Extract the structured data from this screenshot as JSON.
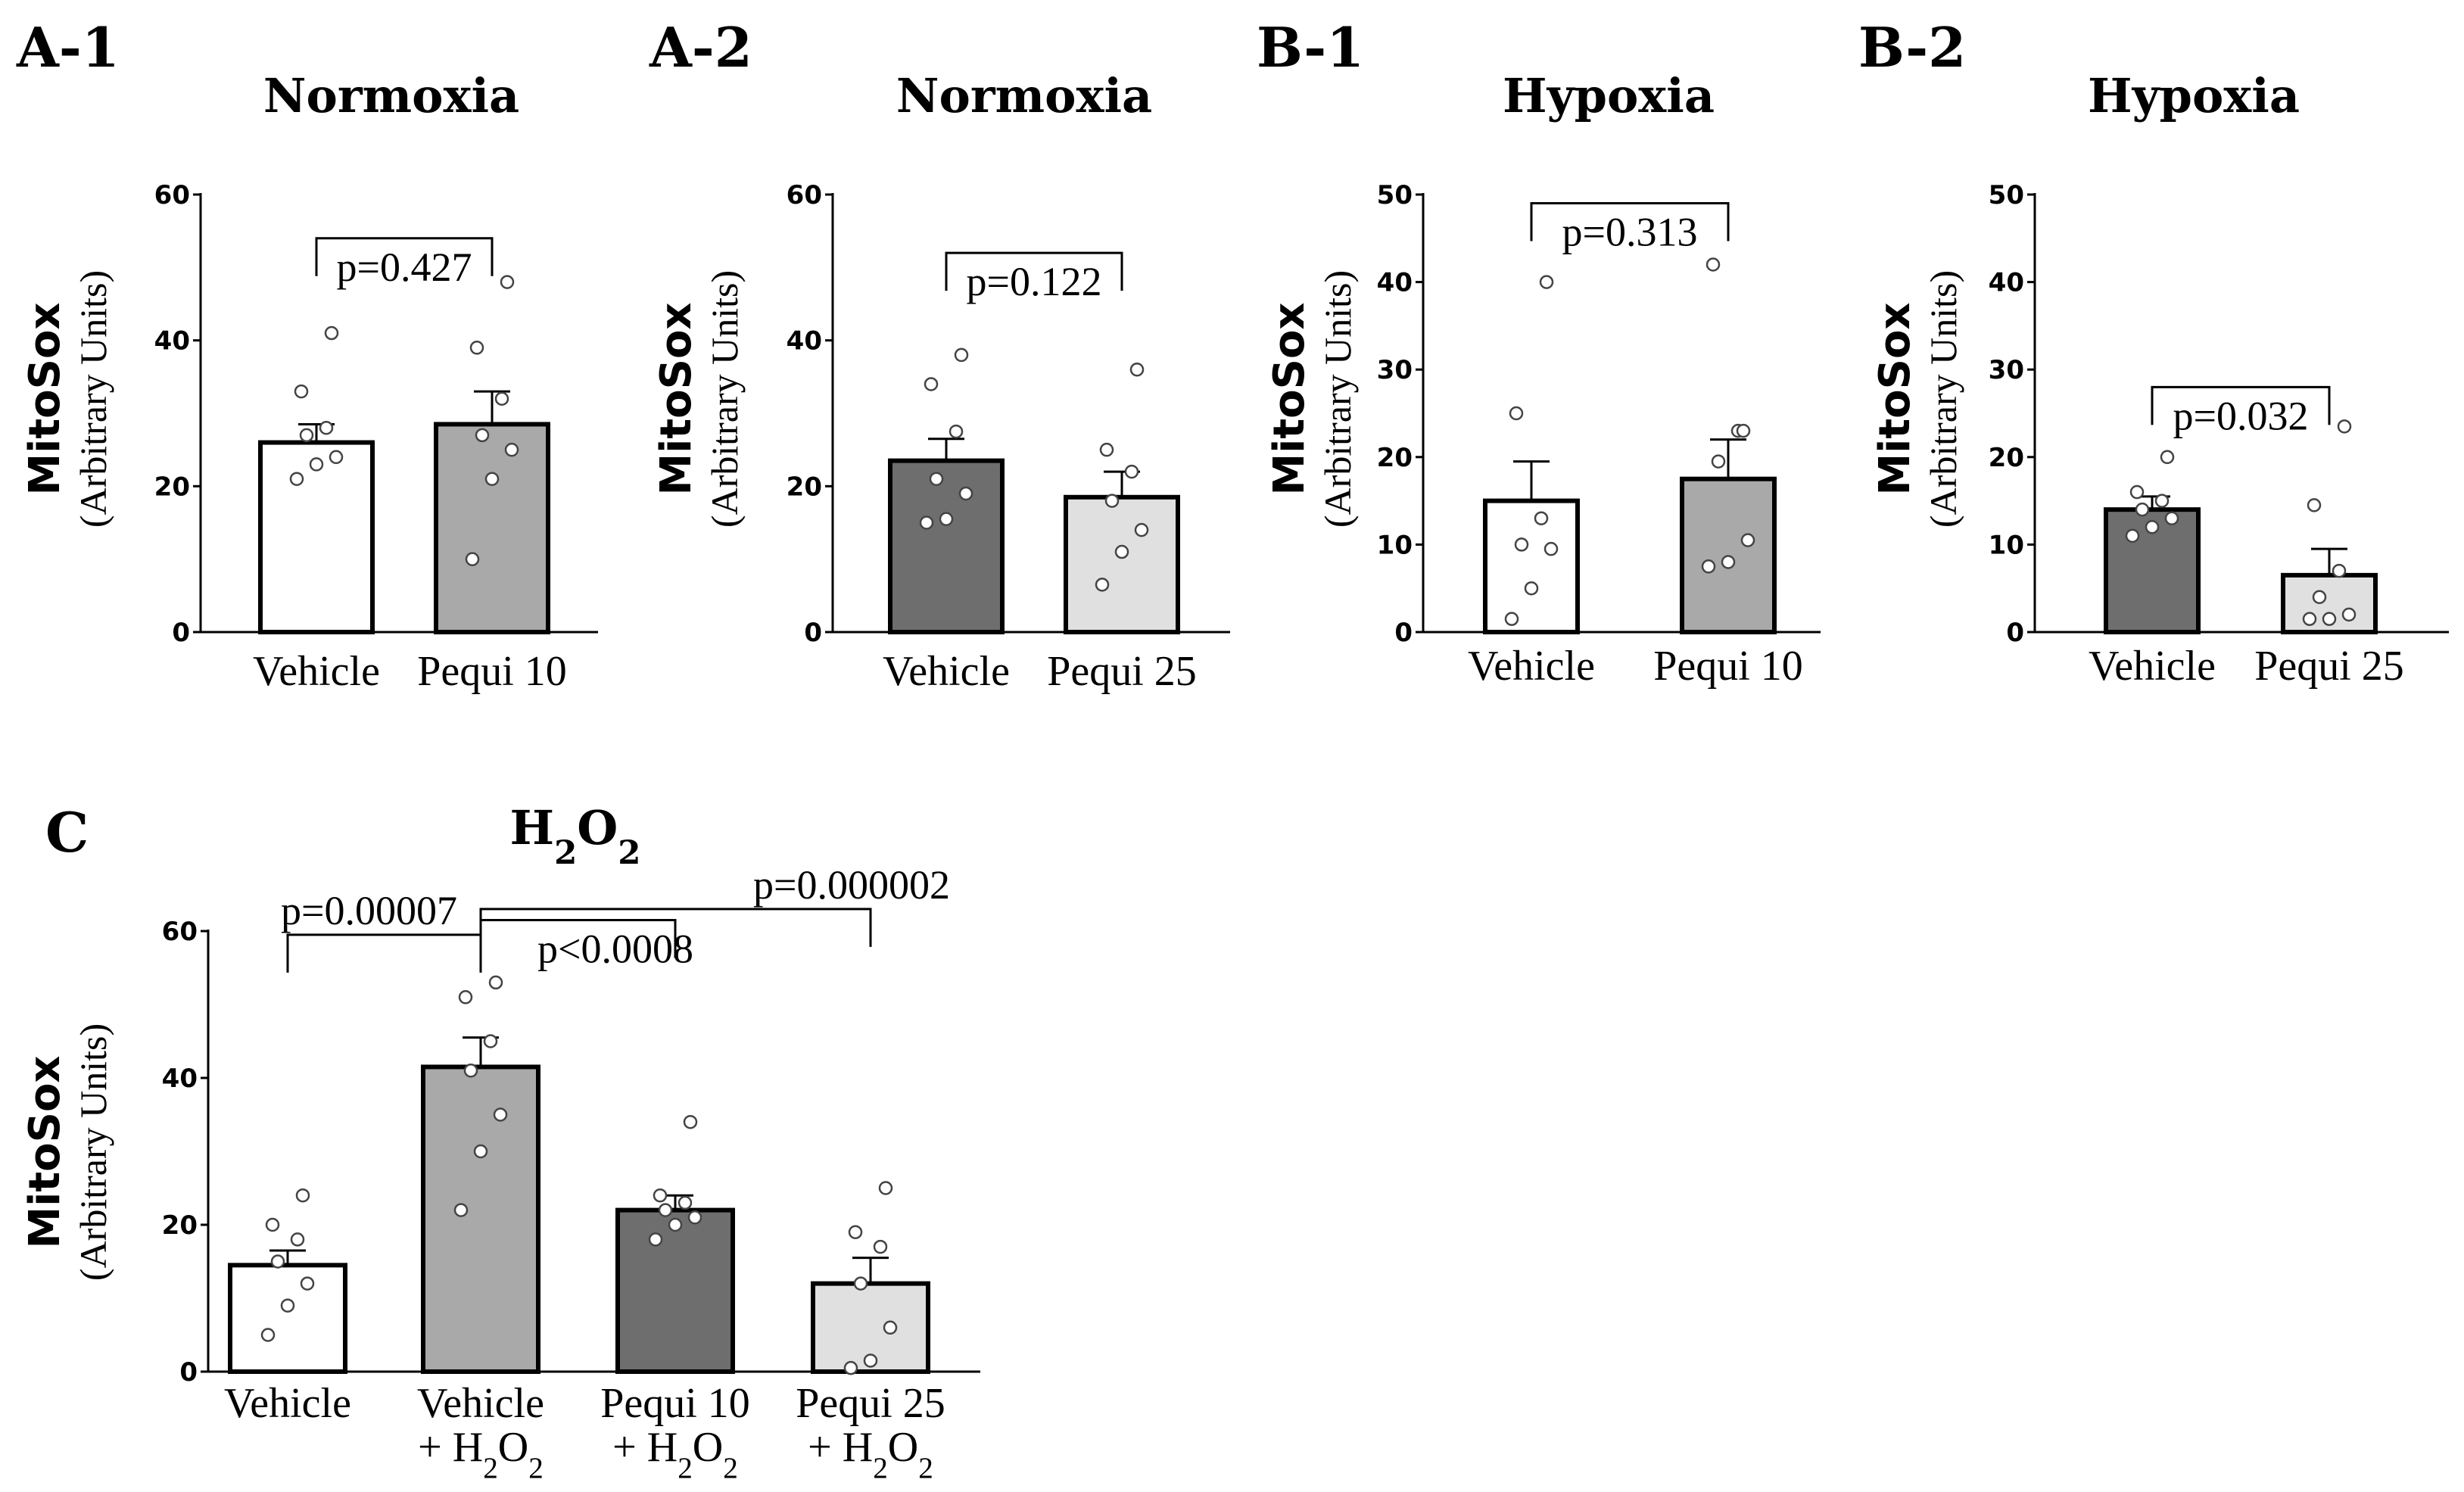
{
  "chart_data": [
    {
      "panel": "A-1",
      "type": "bar",
      "title": "Normoxia",
      "ylabel": "MitoSox",
      "ylabel_sub": "(Arbitrary Units)",
      "ylim": [
        0,
        60
      ],
      "yticks": [
        0,
        20,
        40,
        60
      ],
      "categories": [
        "Vehicle",
        "Pequi 10"
      ],
      "values": [
        26,
        28.5
      ],
      "errors": [
        2.5,
        4.5
      ],
      "fills": [
        "#ffffff",
        "#a9a9a9"
      ],
      "points": [
        [
          21,
          23,
          24,
          27,
          28,
          33,
          41
        ],
        [
          10,
          21,
          25,
          27,
          32,
          39,
          48
        ]
      ],
      "comparisons": [
        {
          "a": 0,
          "b": 1,
          "level": 54,
          "label": "p=0.427"
        }
      ]
    },
    {
      "panel": "A-2",
      "type": "bar",
      "title": "Normoxia",
      "ylabel": "MitoSox",
      "ylabel_sub": "(Arbitrary Units)",
      "ylim": [
        0,
        60
      ],
      "yticks": [
        0,
        20,
        40,
        60
      ],
      "categories": [
        "Vehicle",
        "Pequi 25"
      ],
      "values": [
        23.5,
        18.5
      ],
      "errors": [
        3,
        3.5
      ],
      "fills": [
        "#6e6e6e",
        "#e0e0e0"
      ],
      "points": [
        [
          15,
          15.5,
          19,
          21,
          27.5,
          34,
          38
        ],
        [
          6.5,
          11,
          14,
          18,
          22,
          25,
          36
        ]
      ],
      "comparisons": [
        {
          "a": 0,
          "b": 1,
          "level": 52,
          "label": "p=0.122"
        }
      ]
    },
    {
      "panel": "B-1",
      "type": "bar",
      "title": "Hypoxia",
      "ylabel": "MitoSox",
      "ylabel_sub": "(Arbitrary Units)",
      "ylim": [
        0,
        50
      ],
      "yticks": [
        0,
        10,
        20,
        30,
        40,
        50
      ],
      "categories": [
        "Vehicle",
        "Pequi 10"
      ],
      "values": [
        15,
        17.5
      ],
      "errors": [
        4.5,
        4.5
      ],
      "fills": [
        "#ffffff",
        "#a9a9a9"
      ],
      "points": [
        [
          1.5,
          5,
          9.5,
          10,
          13,
          25,
          40
        ],
        [
          7.5,
          8,
          10.5,
          19.5,
          23,
          42,
          23
        ]
      ],
      "comparisons": [
        {
          "a": 0,
          "b": 1,
          "level": 49,
          "label": "p=0.313"
        }
      ]
    },
    {
      "panel": "B-2",
      "type": "bar",
      "title": "Hypoxia",
      "ylabel": "MitoSox",
      "ylabel_sub": "(Arbitrary Units)",
      "ylim": [
        0,
        50
      ],
      "yticks": [
        0,
        10,
        20,
        30,
        40,
        50
      ],
      "categories": [
        "Vehicle",
        "Pequi 25"
      ],
      "values": [
        14,
        6.5
      ],
      "errors": [
        1.5,
        3
      ],
      "fills": [
        "#6e6e6e",
        "#e0e0e0"
      ],
      "points": [
        [
          11,
          12,
          13,
          14,
          15,
          16,
          20
        ],
        [
          1.5,
          1.5,
          2,
          4,
          7,
          14.5,
          23.5
        ]
      ],
      "comparisons": [
        {
          "a": 0,
          "b": 1,
          "level": 28,
          "label": "p=0.032"
        }
      ]
    },
    {
      "panel": "C",
      "type": "bar",
      "title": "H₂O₂",
      "ylabel": "MitoSox",
      "ylabel_sub": "(Arbitrary Units)",
      "ylim": [
        0,
        60
      ],
      "yticks": [
        0,
        20,
        40,
        60
      ],
      "categories": [
        "Vehicle",
        "Vehicle",
        "Pequi 10",
        "Pequi 25"
      ],
      "categories_line2": [
        "",
        "+ H₂O₂",
        "+ H₂O₂",
        "+ H₂O₂"
      ],
      "values": [
        14.5,
        41.5,
        22,
        12
      ],
      "errors": [
        2,
        4,
        2,
        3.5
      ],
      "fills": [
        "#ffffff",
        "#a9a9a9",
        "#6e6e6e",
        "#e0e0e0"
      ],
      "points": [
        [
          5,
          9,
          12,
          15,
          18,
          20,
          24
        ],
        [
          22,
          30,
          35,
          41,
          45,
          51,
          53
        ],
        [
          18,
          20,
          21,
          22,
          23,
          24,
          34
        ],
        [
          0.5,
          1.5,
          6,
          12,
          17,
          19,
          25
        ]
      ],
      "comparisons": [
        {
          "a": 0,
          "b": 1,
          "level": 59.5,
          "label": "p=0.00007"
        },
        {
          "a": 1,
          "b": 2,
          "level": 61.5,
          "label": "p<0.0008"
        },
        {
          "a": 1,
          "b": 3,
          "level": 63,
          "label": "p=0.000002"
        }
      ]
    }
  ]
}
